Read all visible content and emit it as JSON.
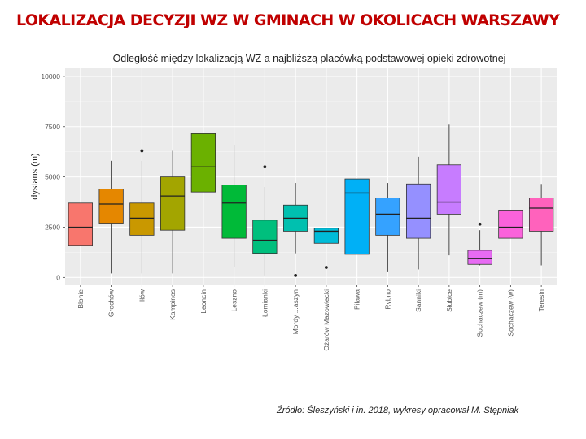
{
  "slide": {
    "title": "LOKALIZACJA DECYZJI WZ W GMINACH W OKOLICACH WARSZAWY",
    "source": "Źródło: Śleszyński i in. 2018, wykresy opracował M. Stępniak"
  },
  "chart_data": {
    "type": "boxplot",
    "title": "Odległość między lokalizacją WZ a najbliższą placówką podstawowej opieki zdrowotnej",
    "ylabel": "dystans (m)",
    "xlabel": "",
    "ylim": [
      -350,
      10400
    ],
    "yticks": [
      0,
      2500,
      5000,
      7500,
      10000
    ],
    "grid": true,
    "legend": "none",
    "categories": [
      "Błonie",
      "Grochów",
      "Iłów",
      "Kampinos",
      "Leoncin",
      "Leszno",
      "Łomianki",
      "Mordy ...aszyn",
      "Ożarów Mazowiecki",
      "Pilawa",
      "Rybno",
      "Sanniki",
      "Słubice",
      "Sochaczew (m)",
      "Sochaczew (w)",
      "Teresin"
    ],
    "series": [
      {
        "name": "Błonie",
        "color": "#f8766d",
        "min": 1600,
        "q1": 1600,
        "median": 2500,
        "q3": 3700,
        "max": 3700,
        "outliers": []
      },
      {
        "name": "Grochów",
        "color": "#e58700",
        "min": 200,
        "q1": 2700,
        "median": 3650,
        "q3": 4400,
        "max": 5800,
        "outliers": []
      },
      {
        "name": "Iłów",
        "color": "#c99800",
        "min": 200,
        "q1": 2100,
        "median": 2950,
        "q3": 3700,
        "max": 5800,
        "outliers": [
          6300
        ]
      },
      {
        "name": "Kampinos",
        "color": "#a3a500",
        "min": 200,
        "q1": 2350,
        "median": 4050,
        "q3": 5000,
        "max": 6300,
        "outliers": []
      },
      {
        "name": "Leoncin",
        "color": "#6bb100",
        "min": 4250,
        "q1": 4250,
        "median": 5500,
        "q3": 7150,
        "max": 7150,
        "outliers": []
      },
      {
        "name": "Leszno",
        "color": "#00ba38",
        "min": 500,
        "q1": 1950,
        "median": 3700,
        "q3": 4600,
        "max": 6600,
        "outliers": []
      },
      {
        "name": "Łomianki",
        "color": "#00bf7d",
        "min": 100,
        "q1": 1200,
        "median": 1850,
        "q3": 2850,
        "max": 4500,
        "outliers": [
          5500
        ]
      },
      {
        "name": "Mordy ...aszyn",
        "color": "#00c0af",
        "min": 1200,
        "q1": 2300,
        "median": 2950,
        "q3": 3600,
        "max": 4700,
        "outliers": [
          100
        ]
      },
      {
        "name": "Ożarów Mazowiecki",
        "color": "#00bcd8",
        "min": 1700,
        "q1": 1700,
        "median": 2300,
        "q3": 2450,
        "max": 2450,
        "outliers": [
          500
        ]
      },
      {
        "name": "Pilawa",
        "color": "#00b0f6",
        "min": 1150,
        "q1": 1150,
        "median": 4200,
        "q3": 4900,
        "max": 4900,
        "outliers": []
      },
      {
        "name": "Rybno",
        "color": "#35a2ff",
        "min": 300,
        "q1": 2100,
        "median": 3150,
        "q3": 3950,
        "max": 4700,
        "outliers": []
      },
      {
        "name": "Sanniki",
        "color": "#9590ff",
        "min": 400,
        "q1": 1950,
        "median": 2950,
        "q3": 4650,
        "max": 6000,
        "outliers": []
      },
      {
        "name": "Słubice",
        "color": "#c77cff",
        "min": 1100,
        "q1": 3150,
        "median": 3750,
        "q3": 5600,
        "max": 7600,
        "outliers": []
      },
      {
        "name": "Sochaczew (m)",
        "color": "#e76bf3",
        "min": 600,
        "q1": 650,
        "median": 950,
        "q3": 1350,
        "max": 2350,
        "outliers": [
          2650
        ]
      },
      {
        "name": "Sochaczew (w)",
        "color": "#fa62db",
        "min": 1950,
        "q1": 1950,
        "median": 2500,
        "q3": 3350,
        "max": 3350,
        "outliers": []
      },
      {
        "name": "Teresin",
        "color": "#ff62bc",
        "min": 600,
        "q1": 2300,
        "median": 3450,
        "q3": 3950,
        "max": 4650,
        "outliers": []
      }
    ]
  }
}
